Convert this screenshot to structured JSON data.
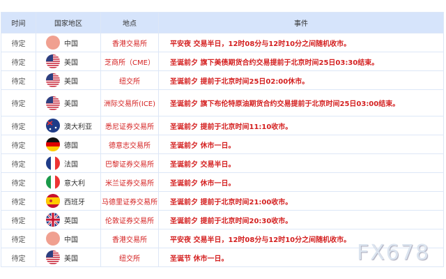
{
  "header": {
    "time": "时间",
    "country": "国家地区",
    "location": "地点",
    "event": "事件"
  },
  "rows": [
    {
      "time": "待定",
      "flag": "china-flag-icon",
      "country": "中国",
      "location": "香港交易所",
      "event": "平安夜 交易半日，12时08分与12时10分之间随机收市。"
    },
    {
      "time": "待定",
      "flag": "usa-flag-icon",
      "country": "美国",
      "location": "芝商所（CME）",
      "event": "圣诞前夕 旗下美债期货合约交易提前于北京时间25日03:30结束。"
    },
    {
      "time": "待定",
      "flag": "usa-flag-icon",
      "country": "美国",
      "location": "纽交所",
      "event": "圣诞前夕 提前于北京时间25日02:00休市。"
    },
    {
      "time": "待定",
      "flag": "usa-flag-icon",
      "country": "美国",
      "location": "洲际交易所(ICE)",
      "event": "圣诞前夕 旗下布伦特原油期货合约交易提前于北京时间25日03:00结束。"
    },
    {
      "time": "待定",
      "flag": "australia-flag-icon",
      "country": "澳大利亚",
      "location": "悉尼证券交易所",
      "event": "圣诞前夕 提前于北京时间11:10收市。"
    },
    {
      "time": "待定",
      "flag": "germany-flag-icon",
      "country": "德国",
      "location": "德意志交易所",
      "event": "圣诞前夕 休市一日。"
    },
    {
      "time": "待定",
      "flag": "france-flag-icon",
      "country": "法国",
      "location": "巴黎证券交易所",
      "event": "圣诞前夕 交易半日。"
    },
    {
      "time": "待定",
      "flag": "italy-flag-icon",
      "country": "意大利",
      "location": "米兰证券交易所",
      "event": "圣诞前夕 休市一日。"
    },
    {
      "time": "待定",
      "flag": "spain-flag-icon",
      "country": "西班牙",
      "location": "马德里证券交易所",
      "event": "圣诞前夕 提前于北京时间21:00收市。"
    },
    {
      "time": "待定",
      "flag": "uk-flag-icon",
      "country": "英国",
      "location": "伦敦证券交易所",
      "event": "圣诞前夕 提前于北京时间20:30收市。"
    },
    {
      "time": "待定",
      "flag": "china-flag-icon",
      "country": "中国",
      "location": "香港交易所",
      "event": "平安夜 交易半日，12时08分与12时10分之间随机收市。"
    },
    {
      "time": "待定",
      "flag": "usa-flag-icon",
      "country": "美国",
      "location": "纽交所",
      "event": "圣诞节 休市一日。"
    }
  ],
  "watermark": "FX678",
  "colors": {
    "header_bg": "#d6e4fb",
    "event_text": "#d42020"
  }
}
